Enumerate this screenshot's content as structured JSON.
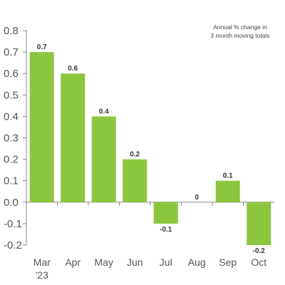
{
  "chart_data": {
    "type": "bar",
    "title": "",
    "annotation": [
      "Annual % change in",
      "3 month moving totals"
    ],
    "categories": [
      "Mar",
      "Apr",
      "May",
      "Jun",
      "Jul",
      "Aug",
      "Sep",
      "Oct"
    ],
    "category_sublabels": [
      "'23",
      "",
      "",
      "",
      "",
      "",
      "",
      ""
    ],
    "values": [
      0.7,
      0.6,
      0.4,
      0.2,
      -0.1,
      0,
      0.1,
      -0.2
    ],
    "data_labels": [
      "0.7",
      "0.6",
      "0.4",
      "0.2",
      "-0.1",
      "0",
      "0.1",
      "-0.2"
    ],
    "ylim": [
      -0.2,
      0.8
    ],
    "yticks": [
      0.8,
      0.7,
      0.6,
      0.5,
      0.4,
      0.3,
      0.2,
      0.1,
      0.0,
      -0.1,
      -0.2
    ],
    "ytick_labels": [
      "0.8",
      "0.7",
      "0.6",
      "0.5",
      "0.4",
      "0.3",
      "0.2",
      "0.1",
      "0.0",
      "-0.1",
      "-0.2"
    ],
    "xlabel": "",
    "ylabel": "",
    "grid": false,
    "legend": "none",
    "bar_color": "#8cc63f",
    "axis_color": "#888888"
  }
}
